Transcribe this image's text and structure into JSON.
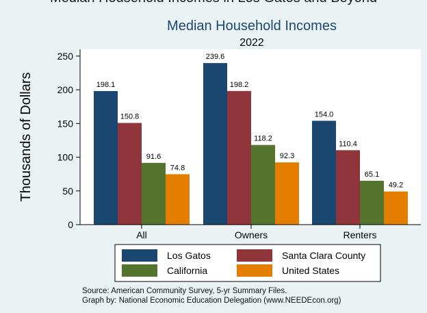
{
  "chart_data": {
    "type": "bar",
    "title_cut": "Median Household Incomes in Los Gatos and Beyond",
    "title": "Median Household Incomes",
    "subtitle": "2022",
    "ylabel": "Thousands of Dollars",
    "xlabel": "",
    "ylim": [
      0,
      260
    ],
    "yticks": [
      0,
      50,
      100,
      150,
      200,
      250
    ],
    "categories": [
      "All",
      "Owners",
      "Renters"
    ],
    "series": [
      {
        "name": "Los Gatos",
        "color": "#1a476f",
        "values": [
          198.1,
          239.6,
          154.0
        ],
        "labels": [
          "198.1",
          "239.6",
          "154.0"
        ]
      },
      {
        "name": "Santa Clara County",
        "color": "#90353b",
        "values": [
          150.8,
          198.2,
          110.4
        ],
        "labels": [
          "150.8",
          "198.2",
          "110.4"
        ]
      },
      {
        "name": "California",
        "color": "#55752f",
        "values": [
          91.6,
          118.2,
          65.1
        ],
        "labels": [
          "91.6",
          "118.2",
          "65.1"
        ]
      },
      {
        "name": "United States",
        "color": "#e37e00",
        "values": [
          74.8,
          92.3,
          49.2
        ],
        "labels": [
          "74.8",
          "92.3",
          "49.2"
        ]
      }
    ],
    "legend_placement": "bottom",
    "grid": false,
    "notes": [
      "Source: American Community Survey, 5-yr Summary Files.",
      "Graph by: National Economic Education Delegation (www.NEEDEcon.org)"
    ]
  }
}
